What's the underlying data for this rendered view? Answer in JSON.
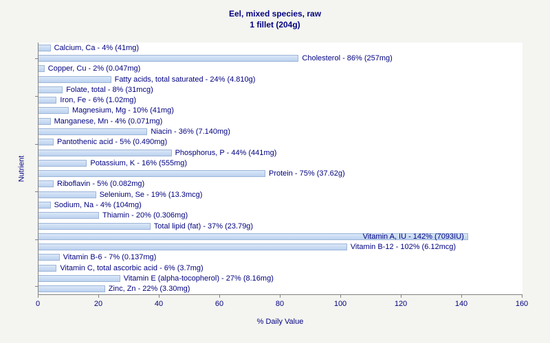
{
  "chart_data": {
    "type": "bar",
    "orientation": "horizontal",
    "title_lines": [
      "Eel, mixed species, raw",
      "1 fillet (204g)"
    ],
    "xlabel": "% Daily Value",
    "ylabel": "Nutrient",
    "xlim": [
      0,
      160
    ],
    "xticks": [
      0,
      20,
      40,
      60,
      80,
      100,
      120,
      140,
      160
    ],
    "grid": false,
    "legend": false,
    "plot_background": "#ffffff",
    "figure_background": "#f4f4f0",
    "bar_fill": "#c9daf3",
    "bar_border": "#9db5d8",
    "text_color": "#000080",
    "bars": [
      {
        "nutrient": "Calcium, Ca",
        "percent": 4,
        "amount": "41mg",
        "label": "Calcium, Ca - 4% (41mg)"
      },
      {
        "nutrient": "Cholesterol",
        "percent": 86,
        "amount": "257mg",
        "label": "Cholesterol - 86% (257mg)"
      },
      {
        "nutrient": "Copper, Cu",
        "percent": 2,
        "amount": "0.047mg",
        "label": "Copper, Cu - 2% (0.047mg)"
      },
      {
        "nutrient": "Fatty acids, total saturated",
        "percent": 24,
        "amount": "4.810g",
        "label": "Fatty acids, total saturated - 24% (4.810g)"
      },
      {
        "nutrient": "Folate, total",
        "percent": 8,
        "amount": "31mcg",
        "label": "Folate, total - 8% (31mcg)"
      },
      {
        "nutrient": "Iron, Fe",
        "percent": 6,
        "amount": "1.02mg",
        "label": "Iron, Fe - 6% (1.02mg)"
      },
      {
        "nutrient": "Magnesium, Mg",
        "percent": 10,
        "amount": "41mg",
        "label": "Magnesium, Mg - 10% (41mg)"
      },
      {
        "nutrient": "Manganese, Mn",
        "percent": 4,
        "amount": "0.071mg",
        "label": "Manganese, Mn - 4% (0.071mg)"
      },
      {
        "nutrient": "Niacin",
        "percent": 36,
        "amount": "7.140mg",
        "label": "Niacin - 36% (7.140mg)"
      },
      {
        "nutrient": "Pantothenic acid",
        "percent": 5,
        "amount": "0.490mg",
        "label": "Pantothenic acid - 5% (0.490mg)"
      },
      {
        "nutrient": "Phosphorus, P",
        "percent": 44,
        "amount": "441mg",
        "label": "Phosphorus, P - 44% (441mg)"
      },
      {
        "nutrient": "Potassium, K",
        "percent": 16,
        "amount": "555mg",
        "label": "Potassium, K - 16% (555mg)"
      },
      {
        "nutrient": "Protein",
        "percent": 75,
        "amount": "37.62g",
        "label": "Protein - 75% (37.62g)"
      },
      {
        "nutrient": "Riboflavin",
        "percent": 5,
        "amount": "0.082mg",
        "label": "Riboflavin - 5% (0.082mg)"
      },
      {
        "nutrient": "Selenium, Se",
        "percent": 19,
        "amount": "13.3mcg",
        "label": "Selenium, Se - 19% (13.3mcg)"
      },
      {
        "nutrient": "Sodium, Na",
        "percent": 4,
        "amount": "104mg",
        "label": "Sodium, Na - 4% (104mg)"
      },
      {
        "nutrient": "Thiamin",
        "percent": 20,
        "amount": "0.306mg",
        "label": "Thiamin - 20% (0.306mg)"
      },
      {
        "nutrient": "Total lipid (fat)",
        "percent": 37,
        "amount": "23.79g",
        "label": "Total lipid (fat) - 37% (23.79g)"
      },
      {
        "nutrient": "Vitamin A, IU",
        "percent": 142,
        "amount": "7093IU",
        "label": "Vitamin A, IU - 142% (7093IU)"
      },
      {
        "nutrient": "Vitamin B-12",
        "percent": 102,
        "amount": "6.12mcg",
        "label": "Vitamin B-12 - 102% (6.12mcg)"
      },
      {
        "nutrient": "Vitamin B-6",
        "percent": 7,
        "amount": "0.137mg",
        "label": "Vitamin B-6 - 7% (0.137mg)"
      },
      {
        "nutrient": "Vitamin C, total ascorbic acid",
        "percent": 6,
        "amount": "3.7mg",
        "label": "Vitamin C, total ascorbic acid - 6% (3.7mg)"
      },
      {
        "nutrient": "Vitamin E (alpha-tocopherol)",
        "percent": 27,
        "amount": "8.16mg",
        "label": "Vitamin E (alpha-tocopherol) - 27% (8.16mg)"
      },
      {
        "nutrient": "Zinc, Zn",
        "percent": 22,
        "amount": "3.30mg",
        "label": "Zinc, Zn - 22% (3.30mg)"
      }
    ]
  }
}
